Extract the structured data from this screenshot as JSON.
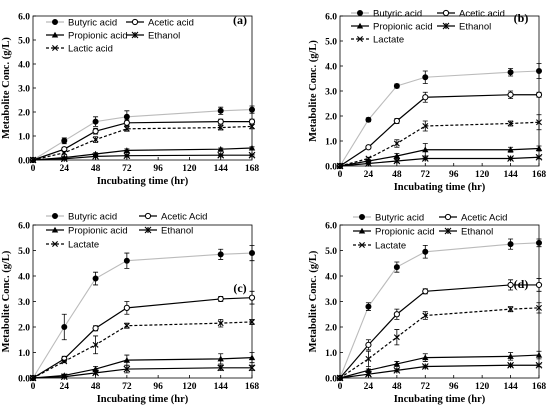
{
  "chart_data": [
    {
      "type": "line",
      "panel_label": "(a)",
      "xlabel": "Incubating time (hr)",
      "ylabel": "Metabolite Conc. (g/L)",
      "x": [
        0,
        24,
        48,
        72,
        144,
        168
      ],
      "x_ticks": [
        0,
        24,
        48,
        72,
        96,
        120,
        144,
        168
      ],
      "xlim": [
        0,
        168
      ],
      "ylim": [
        0,
        6
      ],
      "y_ticks": [
        "0.0",
        "1.0",
        "2.0",
        "3.0",
        "4.0",
        "5.0",
        "6.0"
      ],
      "grid": false,
      "legend_position": "top-left",
      "series": [
        {
          "name": "Butyric acid",
          "values": [
            0,
            0.8,
            1.6,
            1.8,
            2.05,
            2.1
          ],
          "errors": [
            0,
            0.12,
            0.2,
            0.25,
            0.15,
            0.15
          ],
          "color": "#bbbbbb",
          "marker": "circle-filled",
          "dash": "solid"
        },
        {
          "name": "Acetic acid",
          "values": [
            0,
            0.45,
            1.2,
            1.55,
            1.6,
            1.6
          ],
          "errors": [
            0,
            0.08,
            0.12,
            0.12,
            0.1,
            0.1
          ],
          "color": "#000000",
          "marker": "circle-open",
          "dash": "solid"
        },
        {
          "name": "Propionic acid",
          "values": [
            0,
            0.1,
            0.25,
            0.4,
            0.45,
            0.5
          ],
          "errors": [
            0,
            0.03,
            0.05,
            0.06,
            0.05,
            0.05
          ],
          "color": "#000000",
          "marker": "triangle",
          "dash": "solid"
        },
        {
          "name": "Ethanol",
          "values": [
            0,
            0.05,
            0.15,
            0.18,
            0.2,
            0.2
          ],
          "errors": [
            0,
            0.02,
            0.03,
            0.03,
            0.03,
            0.03
          ],
          "color": "#000000",
          "marker": "star",
          "dash": "solid"
        },
        {
          "name": "Lactic acid",
          "values": [
            0,
            0.3,
            0.85,
            1.3,
            1.35,
            1.4
          ],
          "errors": [
            0,
            0.06,
            0.12,
            0.1,
            0.1,
            0.1
          ],
          "color": "#000000",
          "marker": "x",
          "dash": "dashed"
        }
      ]
    },
    {
      "type": "line",
      "panel_label": "(b)",
      "xlabel": "Incubating time (hr)",
      "ylabel": "Metabolite Conc. (g/L)",
      "x": [
        0,
        24,
        48,
        72,
        144,
        168
      ],
      "x_ticks": [
        0,
        24,
        48,
        72,
        96,
        120,
        144,
        168
      ],
      "xlim": [
        0,
        168
      ],
      "ylim": [
        0,
        6
      ],
      "y_ticks": [
        "0.0",
        "1.0",
        "2.0",
        "3.0",
        "4.0",
        "5.0",
        "6.0"
      ],
      "grid": false,
      "legend_position": "top-left",
      "series": [
        {
          "name": "Butyric acid",
          "values": [
            0,
            1.85,
            3.2,
            3.55,
            3.75,
            3.8
          ],
          "errors": [
            0,
            0.08,
            0.08,
            0.25,
            0.15,
            0.3
          ],
          "color": "#bbbbbb",
          "marker": "circle-filled",
          "dash": "solid"
        },
        {
          "name": "Acetic acid",
          "values": [
            0,
            0.75,
            1.8,
            2.75,
            2.85,
            2.85
          ],
          "errors": [
            0,
            0.05,
            0.1,
            0.2,
            0.15,
            0.1
          ],
          "color": "#000000",
          "marker": "circle-open",
          "dash": "solid"
        },
        {
          "name": "Propionic acid",
          "values": [
            0,
            0.2,
            0.4,
            0.65,
            0.65,
            0.7
          ],
          "errors": [
            0,
            0.05,
            0.1,
            0.25,
            0.1,
            0.1
          ],
          "color": "#000000",
          "marker": "triangle",
          "dash": "solid"
        },
        {
          "name": "Ethanol",
          "values": [
            0,
            0.1,
            0.2,
            0.3,
            0.3,
            0.35
          ],
          "errors": [
            0,
            0.03,
            0.05,
            0.05,
            0.05,
            0.05
          ],
          "color": "#000000",
          "marker": "star",
          "dash": "solid"
        },
        {
          "name": "Lactate",
          "values": [
            0,
            0.3,
            0.9,
            1.6,
            1.7,
            1.75
          ],
          "errors": [
            0,
            0.05,
            0.15,
            0.2,
            0.1,
            0.3
          ],
          "color": "#000000",
          "marker": "x",
          "dash": "dashed"
        }
      ]
    },
    {
      "type": "line",
      "panel_label": "(c)",
      "xlabel": "Incubating time (hr)",
      "ylabel": "Metabolite Conc. (g/L)",
      "x": [
        0,
        24,
        48,
        72,
        144,
        168
      ],
      "x_ticks": [
        0,
        24,
        48,
        72,
        96,
        120,
        144,
        168
      ],
      "xlim": [
        0,
        168
      ],
      "ylim": [
        0,
        6
      ],
      "y_ticks": [
        "0.0",
        "1.0",
        "2.0",
        "3.0",
        "4.0",
        "5.0",
        "6.0"
      ],
      "grid": false,
      "legend_position": "top-left",
      "series": [
        {
          "name": "Butyric acid",
          "values": [
            0,
            2.0,
            3.9,
            4.6,
            4.85,
            4.9
          ],
          "errors": [
            0,
            0.5,
            0.25,
            0.3,
            0.2,
            0.3
          ],
          "color": "#bbbbbb",
          "marker": "circle-filled",
          "dash": "solid"
        },
        {
          "name": "Acetic Acid",
          "values": [
            0,
            0.75,
            1.95,
            2.75,
            3.1,
            3.15
          ],
          "errors": [
            0,
            0.1,
            0.1,
            0.25,
            0.1,
            0.25
          ],
          "color": "#000000",
          "marker": "circle-open",
          "dash": "solid"
        },
        {
          "name": "Propionic acid",
          "values": [
            0,
            0.1,
            0.35,
            0.7,
            0.75,
            0.8
          ],
          "errors": [
            0,
            0.05,
            0.1,
            0.2,
            0.2,
            0.2
          ],
          "color": "#000000",
          "marker": "triangle",
          "dash": "solid"
        },
        {
          "name": "Ethanol",
          "values": [
            0,
            0.05,
            0.2,
            0.35,
            0.4,
            0.4
          ],
          "errors": [
            0,
            0.02,
            0.05,
            0.15,
            0.1,
            0.1
          ],
          "color": "#000000",
          "marker": "star",
          "dash": "solid"
        },
        {
          "name": "Lactate",
          "values": [
            0,
            0.65,
            1.3,
            2.05,
            2.15,
            2.2
          ],
          "errors": [
            0,
            0.05,
            0.35,
            0.1,
            0.15,
            0.1
          ],
          "color": "#000000",
          "marker": "x",
          "dash": "dashed"
        }
      ]
    },
    {
      "type": "line",
      "panel_label": "(d)",
      "xlabel": "Incubating time (hr)",
      "ylabel": "Metabolite Conc. (g/L)",
      "x": [
        0,
        24,
        48,
        72,
        144,
        168
      ],
      "x_ticks": [
        0,
        24,
        48,
        72,
        96,
        120,
        144,
        168
      ],
      "xlim": [
        0,
        168
      ],
      "ylim": [
        0,
        6
      ],
      "y_ticks": [
        "0.0",
        "1.0",
        "2.0",
        "3.0",
        "4.0",
        "5.0",
        "6.0"
      ],
      "grid": false,
      "legend_position": "top-left",
      "series": [
        {
          "name": "Butyric acid",
          "values": [
            0,
            2.8,
            4.35,
            4.95,
            5.25,
            5.3
          ],
          "errors": [
            0,
            0.15,
            0.2,
            0.25,
            0.2,
            0.15
          ],
          "color": "#bbbbbb",
          "marker": "circle-filled",
          "dash": "solid"
        },
        {
          "name": "Acetic Acid",
          "values": [
            0,
            1.3,
            2.5,
            3.4,
            3.65,
            3.65
          ],
          "errors": [
            0,
            0.2,
            0.2,
            0.1,
            0.2,
            0.25
          ],
          "color": "#000000",
          "marker": "circle-open",
          "dash": "solid"
        },
        {
          "name": "Propionic acid",
          "values": [
            0,
            0.3,
            0.55,
            0.8,
            0.85,
            0.9
          ],
          "errors": [
            0,
            0.05,
            0.1,
            0.15,
            0.15,
            0.15
          ],
          "color": "#000000",
          "marker": "triangle",
          "dash": "solid"
        },
        {
          "name": "Ethanol",
          "values": [
            0,
            0.15,
            0.3,
            0.45,
            0.5,
            0.5
          ],
          "errors": [
            0,
            0.05,
            0.05,
            0.05,
            0.05,
            0.05
          ],
          "color": "#000000",
          "marker": "star",
          "dash": "solid"
        },
        {
          "name": "Lactate",
          "values": [
            0,
            0.75,
            1.6,
            2.45,
            2.7,
            2.75
          ],
          "errors": [
            0,
            0.3,
            0.3,
            0.15,
            0.1,
            0.2
          ],
          "color": "#000000",
          "marker": "x",
          "dash": "dashed"
        }
      ]
    }
  ]
}
